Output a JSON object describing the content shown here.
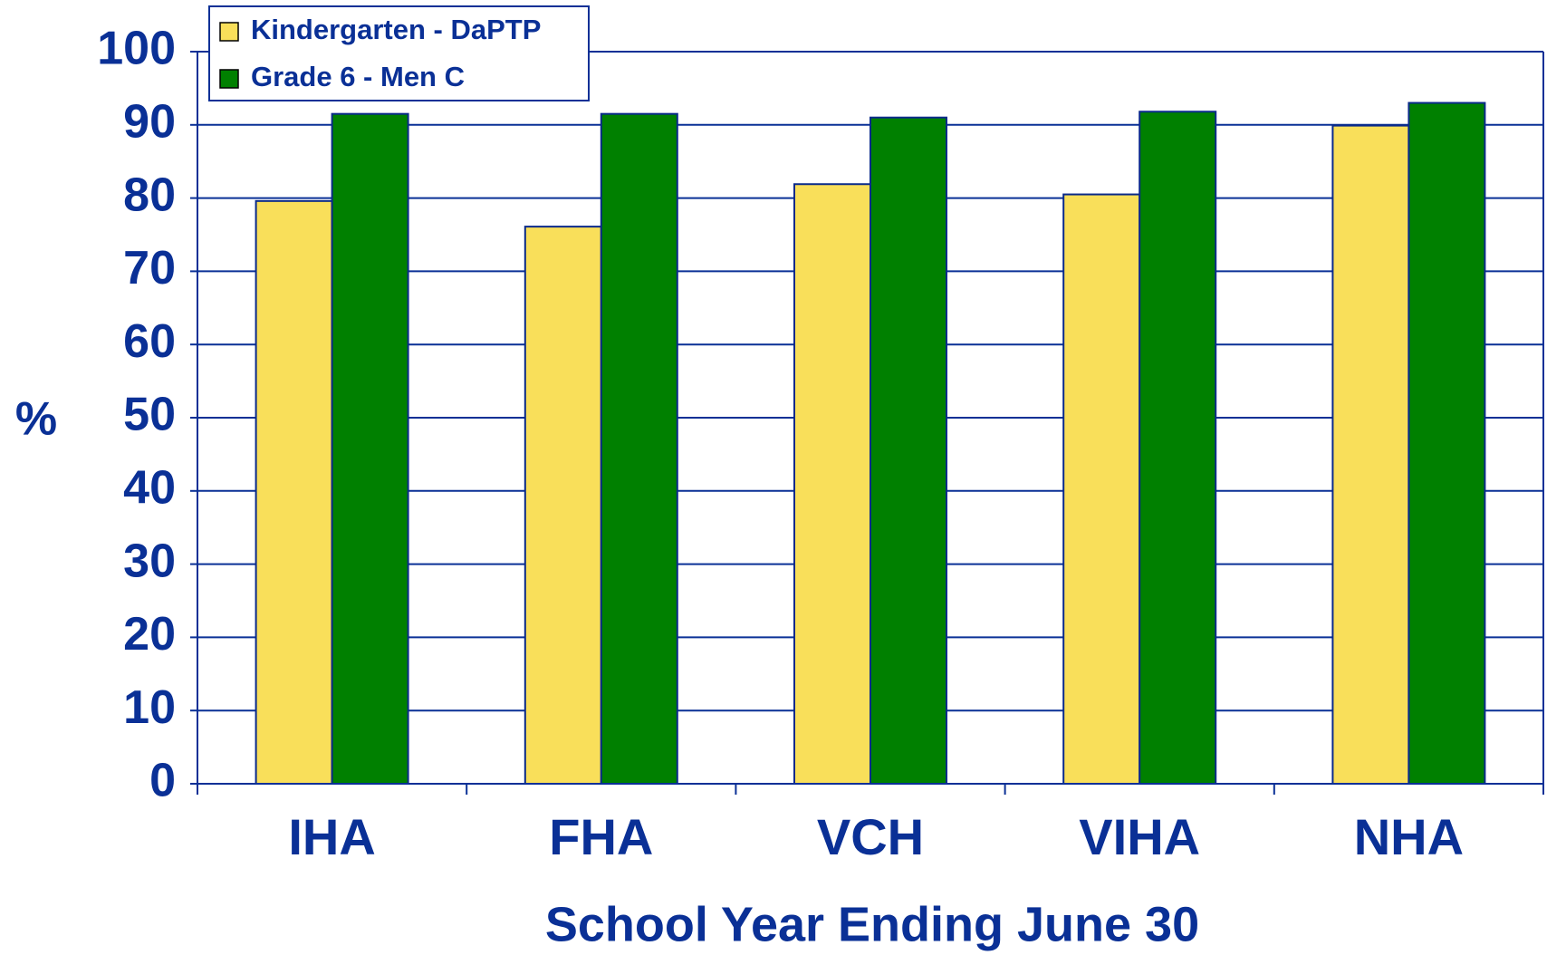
{
  "chart_data": {
    "type": "bar",
    "x_label": "School Year Ending June 30",
    "y_label": "%",
    "categories": [
      "IHA",
      "FHA",
      "VCH",
      "VIHA",
      "NHA"
    ],
    "series": [
      {
        "name": "Kindergarten - DaPTP",
        "color": "#f9df5a",
        "values": [
          79.6,
          76.1,
          81.9,
          80.5,
          89.9
        ]
      },
      {
        "name": "Grade 6 - Men C",
        "color": "#008000",
        "values": [
          91.5,
          91.5,
          91.0,
          91.8,
          93.0
        ]
      }
    ],
    "ylim": [
      0,
      100
    ],
    "yticks": [
      0,
      10,
      20,
      30,
      40,
      50,
      60,
      70,
      80,
      90,
      100
    ],
    "grid": true,
    "legend": "top-left"
  }
}
